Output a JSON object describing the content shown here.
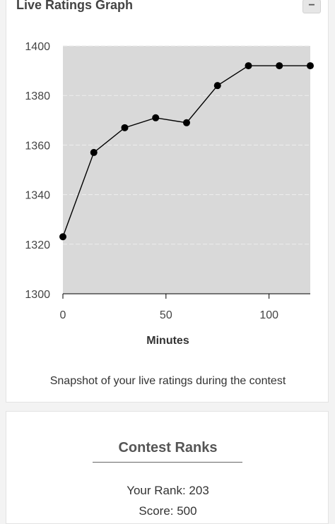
{
  "graph_panel": {
    "title": "Live Ratings Graph",
    "collapse_label": "−",
    "caption": "Snapshot of your live ratings during the contest"
  },
  "chart_data": {
    "type": "line",
    "x": [
      0,
      15,
      30,
      45,
      60,
      75,
      90,
      105,
      120
    ],
    "y": [
      1323,
      1357,
      1367,
      1371,
      1369,
      1384,
      1392,
      1392,
      1392
    ],
    "xlabel": "Minutes",
    "ylabel": "",
    "xlim": [
      0,
      120
    ],
    "ylim": [
      1300,
      1400
    ],
    "xticks": [
      0,
      50,
      100
    ],
    "yticks": [
      1300,
      1320,
      1340,
      1360,
      1380,
      1400
    ],
    "grid": true,
    "colors": {
      "plot_bg": "#d9d9d9",
      "line": "#000000",
      "marker": "#000000",
      "grid": "#eeeeee"
    }
  },
  "ranks_panel": {
    "title": "Contest Ranks",
    "rank_text": "Your Rank: 203",
    "score_text": "Score: 500"
  }
}
